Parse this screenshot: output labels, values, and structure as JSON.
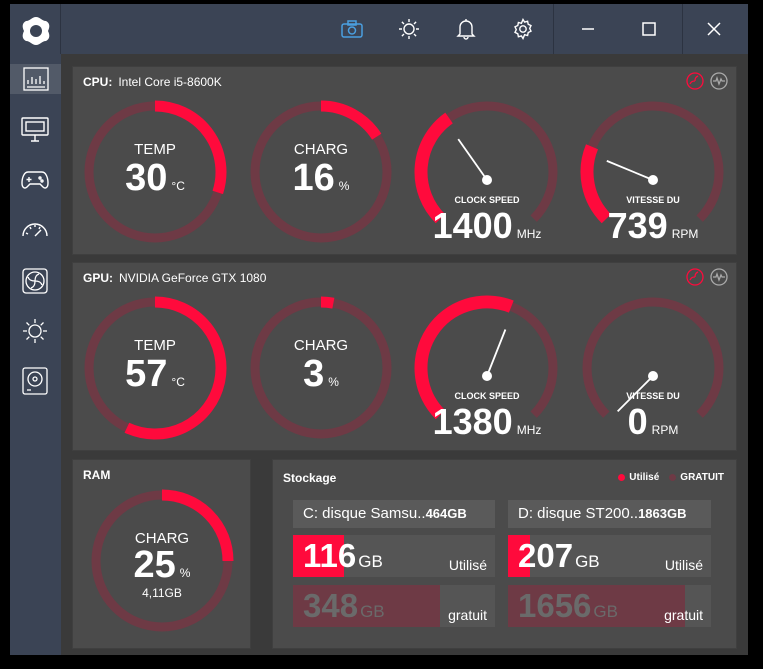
{
  "colors": {
    "accent": "#ff0a3c",
    "track": "#6e3a45",
    "panel": "#4b4b4b",
    "chrome": "#3b4455"
  },
  "titlebar": {
    "icons": [
      "camera-icon",
      "brightness-icon",
      "bell-icon",
      "gear-icon",
      "minimize-icon",
      "maximize-icon",
      "close-icon"
    ]
  },
  "sidebar": {
    "items": [
      "dashboard-icon",
      "monitor-icon",
      "gamepad-icon",
      "speedometer-icon",
      "fan-icon",
      "sun-icon",
      "disk-icon"
    ]
  },
  "cpu": {
    "label": "CPU:",
    "name": "Intel Core i5-8600K",
    "temp": {
      "label": "TEMP",
      "value": "30",
      "unit": "°C",
      "level": 0.3
    },
    "load": {
      "label": "CHARG",
      "value": "16",
      "unit": "%",
      "level": 0.16
    },
    "clock": {
      "label": "CLOCK SPEED",
      "value": "1400",
      "unit": "MHz",
      "level": 0.37
    },
    "fan": {
      "label": "VITESSE DU",
      "value": "739",
      "unit": "RPM",
      "level": 0.25
    }
  },
  "gpu": {
    "label": "GPU:",
    "name": "NVIDIA GeForce GTX 1080",
    "temp": {
      "label": "TEMP",
      "value": "57",
      "unit": "°C",
      "level": 0.57
    },
    "load": {
      "label": "CHARG",
      "value": "3",
      "unit": "%",
      "level": 0.03
    },
    "clock": {
      "label": "CLOCK SPEED",
      "value": "1380",
      "unit": "MHz",
      "level": 0.58
    },
    "fan": {
      "label": "VITESSE DU",
      "value": "0",
      "unit": "RPM",
      "level": 0.0
    }
  },
  "ram": {
    "label": "RAM",
    "load": {
      "label": "CHARG",
      "value": "25",
      "unit": "%",
      "sub": "4,11GB",
      "level": 0.25
    }
  },
  "storage": {
    "title": "Stockage",
    "legend_used": "Utilisé",
    "legend_free": "GRATUIT",
    "disks": [
      {
        "name": "C: disque Samsu..",
        "size": "464GB",
        "used": "116",
        "used_unit": "GB",
        "used_label": "Utilisé",
        "free": "348",
        "free_unit": "GB",
        "free_label": "gratuit",
        "used_frac": 0.25
      },
      {
        "name": "D: disque ST200..",
        "size": "1863GB",
        "used": "207",
        "used_unit": "GB",
        "used_label": "Utilisé",
        "free": "1656",
        "free_unit": "GB",
        "free_label": "gratuit",
        "used_frac": 0.11
      }
    ]
  }
}
